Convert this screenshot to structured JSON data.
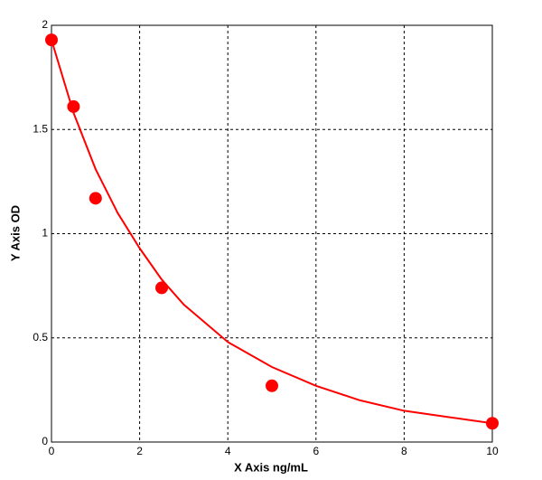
{
  "chart_data": {
    "type": "scatter",
    "x_label": "X Axis ng/mL",
    "y_label": "Y Axis OD",
    "color": "#ff0000",
    "series": [
      {
        "x": [
          0,
          0.5,
          1,
          2.5,
          5,
          10
        ],
        "values": [
          1.93,
          1.61,
          1.17,
          0.74,
          0.27,
          0.09
        ]
      },
      {
        "type": "line",
        "x": [
          0,
          0.5,
          1,
          1.5,
          2,
          2.5,
          3,
          4,
          5,
          6,
          7,
          8,
          9,
          10
        ],
        "values": [
          1.93,
          1.58,
          1.31,
          1.1,
          0.93,
          0.78,
          0.66,
          0.48,
          0.36,
          0.27,
          0.2,
          0.15,
          0.12,
          0.09
        ]
      }
    ],
    "xlim": [
      0,
      10
    ],
    "xticks": [
      0,
      2,
      4,
      6,
      8,
      10
    ],
    "ylim": [
      0,
      2
    ],
    "yticks": [
      0,
      0.5,
      1,
      1.5,
      2
    ],
    "grid": true
  }
}
